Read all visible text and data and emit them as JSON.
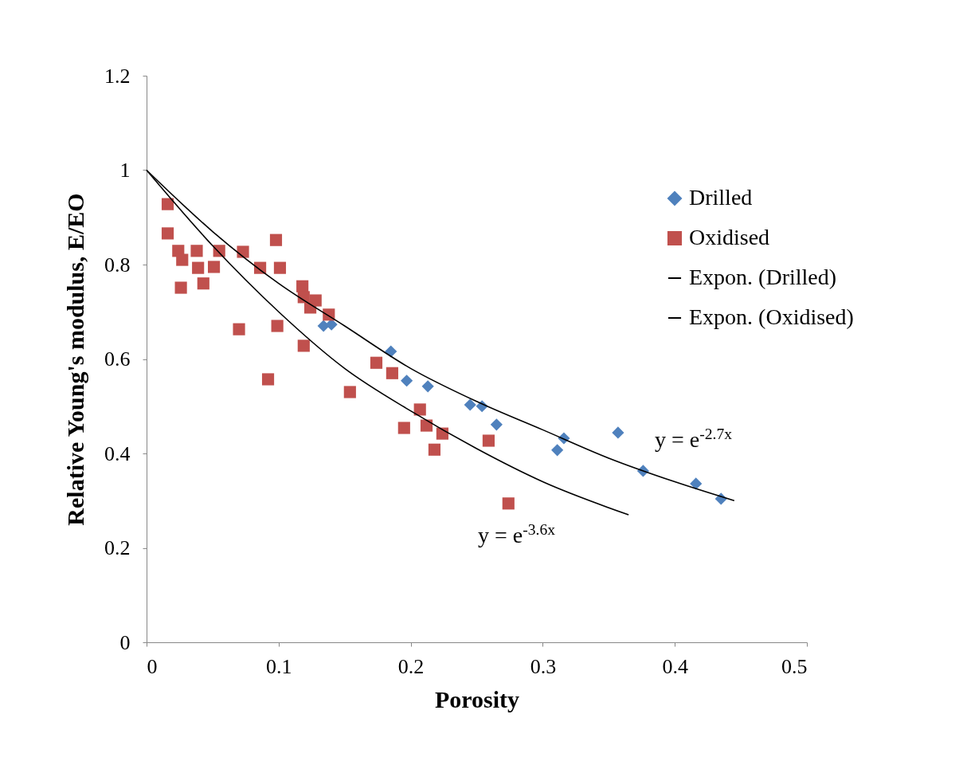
{
  "chart_data": {
    "type": "scatter",
    "xlabel": "Porosity",
    "ylabel": "Relative Young's modulus, E/EO",
    "xlim": [
      0,
      0.5
    ],
    "ylim": [
      0,
      1.2
    ],
    "xticks": [
      0,
      0.1,
      0.2,
      0.3,
      0.4,
      0.5
    ],
    "yticks": [
      0,
      0.2,
      0.4,
      0.6,
      0.8,
      1,
      1.2
    ],
    "legend": "right",
    "grid": false,
    "series": [
      {
        "name": "Drilled",
        "color": "#4f81bd",
        "marker": "diamond",
        "x": [
          0.134,
          0.14,
          0.185,
          0.197,
          0.213,
          0.245,
          0.254,
          0.265,
          0.311,
          0.316,
          0.357,
          0.376,
          0.416,
          0.435
        ],
        "values": [
          0.67,
          0.673,
          0.616,
          0.554,
          0.542,
          0.503,
          0.5,
          0.461,
          0.407,
          0.432,
          0.444,
          0.363,
          0.336,
          0.304
        ]
      },
      {
        "name": "Oxidised",
        "color": "#c0504d",
        "marker": "square",
        "x": [
          0.016,
          0.016,
          0.024,
          0.027,
          0.026,
          0.038,
          0.039,
          0.043,
          0.051,
          0.055,
          0.07,
          0.073,
          0.086,
          0.092,
          0.098,
          0.099,
          0.101,
          0.118,
          0.119,
          0.119,
          0.124,
          0.128,
          0.138,
          0.154,
          0.174,
          0.186,
          0.195,
          0.207,
          0.212,
          0.218,
          0.224,
          0.259,
          0.274
        ],
        "values": [
          0.928,
          0.866,
          0.829,
          0.81,
          0.751,
          0.829,
          0.793,
          0.76,
          0.795,
          0.829,
          0.663,
          0.827,
          0.793,
          0.557,
          0.852,
          0.67,
          0.793,
          0.754,
          0.731,
          0.628,
          0.709,
          0.724,
          0.694,
          0.53,
          0.592,
          0.57,
          0.454,
          0.493,
          0.459,
          0.408,
          0.442,
          0.427,
          0.294
        ]
      },
      {
        "name": "Expon. (Drilled)",
        "type": "line",
        "color": "#000000",
        "x": [
          0,
          0.05,
          0.1,
          0.15,
          0.2,
          0.25,
          0.3,
          0.35,
          0.4,
          0.445
        ],
        "values": [
          1,
          0.87,
          0.76,
          0.67,
          0.58,
          0.51,
          0.45,
          0.39,
          0.34,
          0.3
        ]
      },
      {
        "name": "Expon. (Oxidised)",
        "type": "line",
        "color": "#000000",
        "x": [
          0,
          0.05,
          0.1,
          0.15,
          0.2,
          0.25,
          0.3,
          0.365
        ],
        "values": [
          1,
          0.84,
          0.7,
          0.58,
          0.49,
          0.41,
          0.34,
          0.27
        ]
      }
    ],
    "annotations": [
      "y = e$^{-2.7x}$",
      "y = e$^{-3.6x}$"
    ]
  }
}
